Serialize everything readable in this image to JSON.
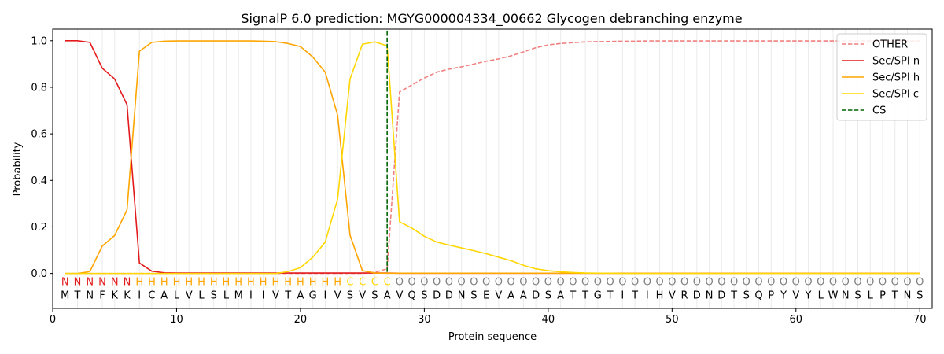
{
  "chart_data": {
    "type": "line",
    "title": "SignalP 6.0 prediction: MGYG000004334_00662 Glycogen debranching enzyme",
    "xlabel": "Protein sequence",
    "ylabel": "Probability",
    "xlim": [
      0,
      71
    ],
    "ylim": [
      -0.15,
      1.05
    ],
    "xticks": [
      0,
      10,
      20,
      30,
      40,
      50,
      60,
      70
    ],
    "yticks": [
      0.0,
      0.2,
      0.4,
      0.6,
      0.8,
      1.0
    ],
    "ytick_labels": [
      "0.0",
      "0.2",
      "0.4",
      "0.6",
      "0.8",
      "1.0"
    ],
    "grid": "vertical-per-residue",
    "legend_position": "top-right",
    "sequence": [
      "M",
      "T",
      "N",
      "F",
      "K",
      "K",
      "I",
      "C",
      "A",
      "L",
      "V",
      "L",
      "S",
      "L",
      "M",
      "I",
      "I",
      "V",
      "T",
      "A",
      "G",
      "I",
      "V",
      "S",
      "V",
      "S",
      "A",
      "V",
      "Q",
      "S",
      "D",
      "D",
      "N",
      "S",
      "E",
      "V",
      "A",
      "A",
      "D",
      "S",
      "A",
      "T",
      "T",
      "G",
      "T",
      "I",
      "T",
      "I",
      "H",
      "V",
      "R",
      "D",
      "N",
      "D",
      "T",
      "S",
      "Q",
      "P",
      "Y",
      "V",
      "Y",
      "L",
      "W",
      "N",
      "S",
      "L",
      "P",
      "T",
      "N",
      "S"
    ],
    "labels": [
      "N",
      "N",
      "N",
      "N",
      "N",
      "N",
      "H",
      "H",
      "H",
      "H",
      "H",
      "H",
      "H",
      "H",
      "H",
      "H",
      "H",
      "H",
      "H",
      "H",
      "H",
      "H",
      "H",
      "C",
      "C",
      "C",
      "C",
      "O",
      "O",
      "O",
      "O",
      "O",
      "O",
      "O",
      "O",
      "O",
      "O",
      "O",
      "O",
      "O",
      "O",
      "O",
      "O",
      "O",
      "O",
      "O",
      "O",
      "O",
      "O",
      "O",
      "O",
      "O",
      "O",
      "O",
      "O",
      "O",
      "O",
      "O",
      "O",
      "O",
      "O",
      "O",
      "O",
      "O",
      "O",
      "O",
      "O",
      "O",
      "O",
      "O"
    ],
    "label_colors": {
      "N": "#e31a1c",
      "H": "#ffa500",
      "C": "#ffd700",
      "O": "#808080"
    },
    "series": [
      {
        "name": "OTHER",
        "color": "#f08080",
        "dash": true,
        "values": [
          0,
          0,
          0,
          0,
          0,
          0,
          0,
          0,
          0,
          0,
          0,
          0,
          0,
          0,
          0,
          0,
          0,
          0,
          0,
          0,
          0,
          0,
          0,
          0,
          0,
          0.005,
          0.02,
          0.78,
          0.81,
          0.84,
          0.865,
          0.878,
          0.888,
          0.9,
          0.912,
          0.922,
          0.935,
          0.952,
          0.97,
          0.982,
          0.988,
          0.992,
          0.995,
          0.996,
          0.997,
          0.998,
          0.998,
          0.999,
          0.999,
          0.999,
          0.999,
          0.999,
          0.999,
          0.999,
          0.999,
          0.999,
          0.999,
          0.999,
          0.999,
          0.999,
          0.999,
          0.999,
          0.999,
          0.999,
          0.999,
          0.999,
          0.999,
          0.999,
          0.999,
          0.999
        ]
      },
      {
        "name": "Sec/SPI n",
        "color": "#e31a1c",
        "dash": false,
        "values": [
          1.0,
          1.0,
          0.993,
          0.882,
          0.836,
          0.725,
          0.045,
          0.01,
          0.003,
          0.002,
          0.002,
          0.002,
          0.002,
          0.002,
          0.002,
          0.002,
          0.002,
          0.002,
          0.002,
          0.002,
          0.002,
          0.002,
          0.002,
          0.002,
          0.002,
          0.002,
          0.002,
          0.001,
          0.001,
          0.001,
          0.001,
          0.001,
          0.001,
          0.001,
          0.001,
          0.001,
          0.001,
          0.001,
          0.001,
          0.001,
          0.001,
          0.001,
          0.001,
          0.001,
          0.001,
          0.001,
          0.001,
          0.001,
          0.001,
          0.001,
          0.001,
          0.001,
          0.001,
          0.001,
          0.001,
          0.001,
          0.001,
          0.001,
          0.001,
          0.001,
          0.001,
          0.001,
          0.001,
          0.001,
          0.001,
          0.001,
          0.001,
          0.001,
          0.001,
          0.001
        ]
      },
      {
        "name": "Sec/SPI h",
        "color": "#ffa500",
        "dash": false,
        "values": [
          0,
          0,
          0.008,
          0.118,
          0.163,
          0.273,
          0.955,
          0.993,
          0.998,
          0.999,
          0.999,
          0.999,
          0.999,
          0.999,
          0.999,
          0.999,
          0.998,
          0.996,
          0.988,
          0.975,
          0.93,
          0.865,
          0.68,
          0.165,
          0.012,
          0.002,
          0.001,
          0.001,
          0.001,
          0.001,
          0.001,
          0.001,
          0.001,
          0.001,
          0.001,
          0.001,
          0.001,
          0.001,
          0.001,
          0.001,
          0.001,
          0.001,
          0.001,
          0.001,
          0.001,
          0.001,
          0.001,
          0.001,
          0.001,
          0.001,
          0.001,
          0.001,
          0.001,
          0.001,
          0.001,
          0.001,
          0.001,
          0.001,
          0.001,
          0.001,
          0.001,
          0.001,
          0.001,
          0.001,
          0.001,
          0.001,
          0.001,
          0.001,
          0.001,
          0.001
        ]
      },
      {
        "name": "Sec/SPI c",
        "color": "#ffd700",
        "dash": false,
        "values": [
          0,
          0,
          0,
          0,
          0,
          0,
          0,
          0,
          0,
          0,
          0,
          0,
          0,
          0,
          0,
          0,
          0,
          0,
          0.008,
          0.025,
          0.07,
          0.135,
          0.32,
          0.835,
          0.985,
          0.995,
          0.978,
          0.222,
          0.195,
          0.16,
          0.135,
          0.122,
          0.11,
          0.098,
          0.085,
          0.07,
          0.055,
          0.035,
          0.02,
          0.012,
          0.007,
          0.004,
          0.002,
          0.001,
          0.001,
          0,
          0,
          0,
          0,
          0,
          0,
          0,
          0,
          0,
          0,
          0,
          0,
          0,
          0,
          0,
          0,
          0,
          0,
          0,
          0,
          0,
          0,
          0,
          0,
          0
        ]
      },
      {
        "name": "CS",
        "color": "#006400",
        "dash": true,
        "vline_x": 27
      }
    ]
  }
}
